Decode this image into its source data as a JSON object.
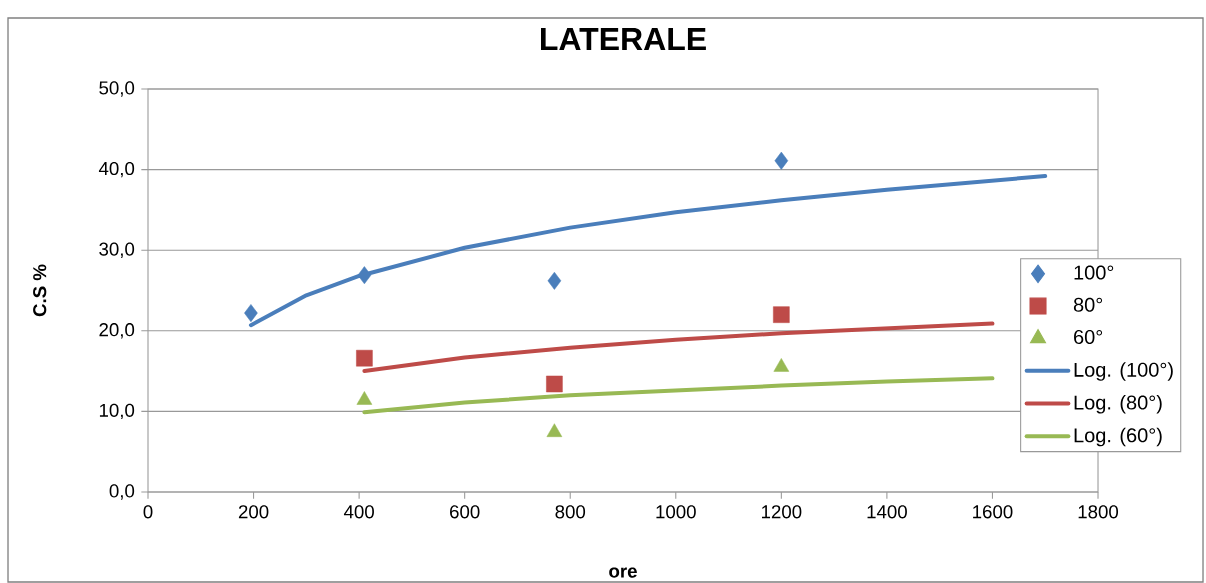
{
  "chart_data": {
    "type": "scatter",
    "title": "LATERALE",
    "xlabel": "ore",
    "ylabel": "C.S %",
    "xlim": [
      0,
      1800
    ],
    "xticks": [
      0,
      200,
      400,
      600,
      800,
      1000,
      1200,
      1400,
      1600,
      1800
    ],
    "ylim": [
      0,
      50
    ],
    "yticks": [
      {
        "value": 0,
        "label": "0,0"
      },
      {
        "value": 10,
        "label": "10,0"
      },
      {
        "value": 20,
        "label": "20,0"
      },
      {
        "value": 30,
        "label": "30,0"
      },
      {
        "value": 40,
        "label": "40,0"
      },
      {
        "value": 50,
        "label": "50,0"
      }
    ],
    "grid": "y",
    "legend": "right",
    "series": [
      {
        "name": "100°",
        "marker": "diamond",
        "color": "#4a7ebb",
        "x": [
          195,
          410,
          770,
          1200
        ],
        "values": [
          22.2,
          26.9,
          26.2,
          41.1
        ]
      },
      {
        "name": "80°",
        "marker": "square",
        "color": "#be4b48",
        "x": [
          410,
          770,
          1200
        ],
        "values": [
          16.6,
          13.4,
          22.0
        ]
      },
      {
        "name": "60°",
        "marker": "triangle",
        "color": "#98b954",
        "x": [
          410,
          770,
          1200
        ],
        "values": [
          11.4,
          7.4,
          15.5
        ]
      },
      {
        "name": "Log. (100°)",
        "type": "line",
        "color": "#4a7ebb",
        "x": [
          195,
          300,
          400,
          600,
          800,
          1000,
          1200,
          1400,
          1700
        ],
        "values": [
          20.7,
          24.4,
          26.8,
          30.3,
          32.8,
          34.7,
          36.2,
          37.5,
          39.2
        ]
      },
      {
        "name": "Log. (80°)",
        "type": "line",
        "color": "#be4b48",
        "x": [
          410,
          600,
          800,
          1000,
          1200,
          1400,
          1600
        ],
        "values": [
          15.0,
          16.7,
          17.9,
          18.9,
          19.7,
          20.3,
          20.9
        ]
      },
      {
        "name": "Log. (60°)",
        "type": "line",
        "color": "#98b954",
        "x": [
          410,
          600,
          800,
          1000,
          1200,
          1400,
          1600
        ],
        "values": [
          9.9,
          11.1,
          12.0,
          12.6,
          13.2,
          13.7,
          14.1
        ]
      }
    ]
  }
}
